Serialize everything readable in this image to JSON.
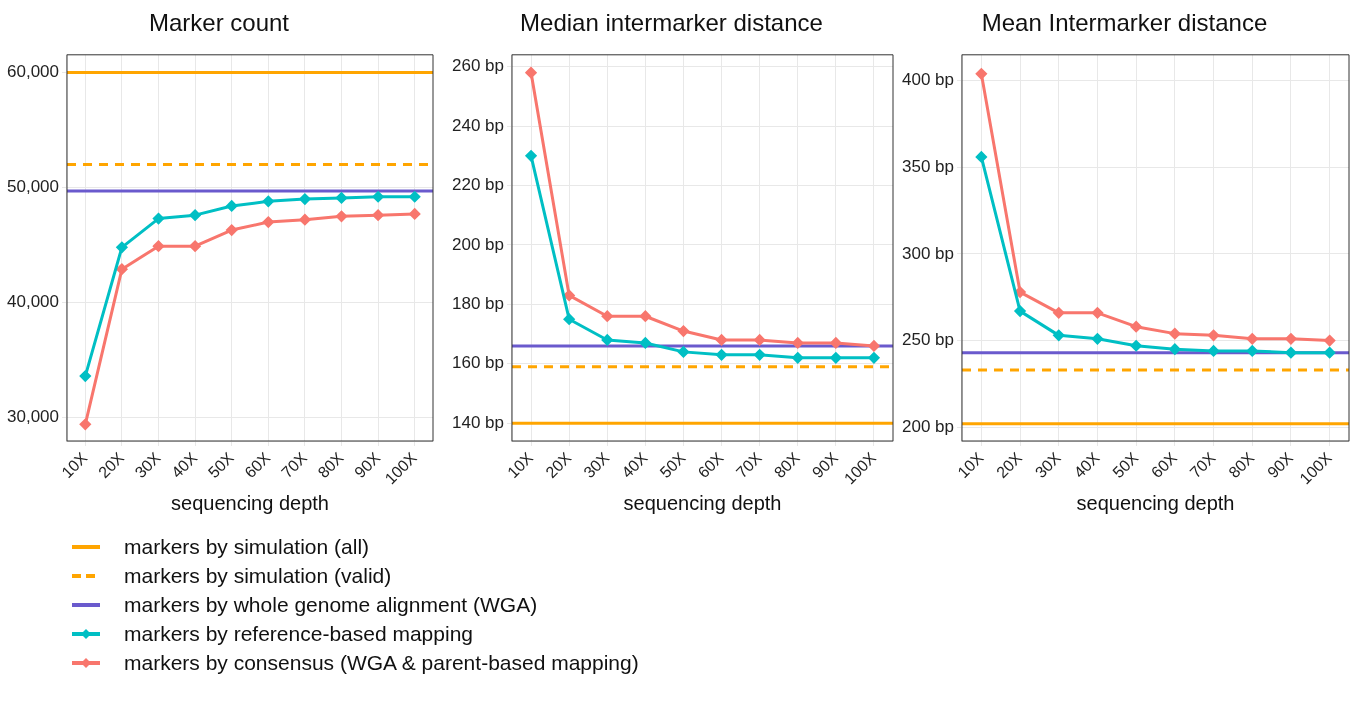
{
  "chart_data": [
    {
      "type": "line",
      "title": "Marker count",
      "xlabel": "sequencing depth",
      "categories": [
        "10X",
        "20X",
        "30X",
        "40X",
        "50X",
        "60X",
        "70X",
        "80X",
        "90X",
        "100X"
      ],
      "series": [
        {
          "name": "markers by reference-based mapping",
          "color": "#00bfc4",
          "values": [
            33600,
            44800,
            47300,
            47600,
            48400,
            48800,
            49000,
            49100,
            49200,
            49200
          ]
        },
        {
          "name": "markers by consensus (WGA & parent-based mapping)",
          "color": "#f8766d",
          "values": [
            29400,
            42900,
            44900,
            44900,
            46300,
            47000,
            47200,
            47500,
            47600,
            47700
          ]
        }
      ],
      "ylim": [
        27950,
        61550
      ],
      "yticks": [
        {
          "value": 30000,
          "label": "30,000"
        },
        {
          "value": 40000,
          "label": "40,000"
        },
        {
          "value": 50000,
          "label": "50,000"
        },
        {
          "value": 60000,
          "label": "60,000"
        }
      ],
      "ref_lines": [
        {
          "axis": "y",
          "value": 60000,
          "label": "markers by simulation (all)",
          "color": "#ffa500",
          "line_style": "solid"
        },
        {
          "axis": "y",
          "value": 52000,
          "label": "markers by simulation (valid)",
          "color": "#ffa500",
          "line_style": "dashed"
        },
        {
          "axis": "y",
          "value": 49700,
          "label": "markers by whole genome alignment (WGA)",
          "color": "#6a5acd",
          "line_style": "solid"
        }
      ],
      "grid": true,
      "marker": "diamond",
      "legend": "bottom"
    },
    {
      "type": "line",
      "title": "Median intermarker distance",
      "xlabel": "sequencing depth",
      "categories": [
        "10X",
        "20X",
        "30X",
        "40X",
        "50X",
        "60X",
        "70X",
        "80X",
        "90X",
        "100X"
      ],
      "series": [
        {
          "color": "#00bfc4",
          "values": [
            230,
            175,
            168,
            167,
            164,
            163,
            163,
            162,
            162,
            162
          ]
        },
        {
          "color": "#f8766d",
          "values": [
            258,
            183,
            176,
            176,
            171,
            168,
            168,
            167,
            167,
            166
          ]
        }
      ],
      "ylim": [
        134,
        264
      ],
      "yticks": [
        {
          "value": 140,
          "label": "140 bp"
        },
        {
          "value": 160,
          "label": "160 bp"
        },
        {
          "value": 180,
          "label": "180 bp"
        },
        {
          "value": 200,
          "label": "200 bp"
        },
        {
          "value": 220,
          "label": "220 bp"
        },
        {
          "value": 240,
          "label": "240 bp"
        },
        {
          "value": 260,
          "label": "260 bp"
        }
      ],
      "ref_lines": [
        {
          "axis": "y",
          "value": 140,
          "color": "#ffa500",
          "line_style": "solid"
        },
        {
          "axis": "y",
          "value": 159,
          "color": "#ffa500",
          "line_style": "dashed"
        },
        {
          "axis": "y",
          "value": 166,
          "color": "#6a5acd",
          "line_style": "solid"
        }
      ],
      "grid": true,
      "marker": "diamond"
    },
    {
      "type": "line",
      "title": "Mean Intermarker distance",
      "xlabel": "sequencing depth",
      "categories": [
        "10X",
        "20X",
        "30X",
        "40X",
        "50X",
        "60X",
        "70X",
        "80X",
        "90X",
        "100X"
      ],
      "series": [
        {
          "color": "#00bfc4",
          "values": [
            356,
            267,
            253,
            251,
            247,
            245,
            244,
            244,
            243,
            243
          ]
        },
        {
          "color": "#f8766d",
          "values": [
            404,
            278,
            266,
            266,
            258,
            254,
            253,
            251,
            251,
            250
          ]
        }
      ],
      "ylim": [
        192,
        415
      ],
      "yticks": [
        {
          "value": 200,
          "label": "200 bp"
        },
        {
          "value": 250,
          "label": "250 bp"
        },
        {
          "value": 300,
          "label": "300 bp"
        },
        {
          "value": 350,
          "label": "350 bp"
        },
        {
          "value": 400,
          "label": "400 bp"
        }
      ],
      "ref_lines": [
        {
          "axis": "y",
          "value": 202,
          "color": "#ffa500",
          "line_style": "solid"
        },
        {
          "axis": "y",
          "value": 233,
          "color": "#ffa500",
          "line_style": "dashed"
        },
        {
          "axis": "y",
          "value": 243,
          "color": "#6a5acd",
          "line_style": "solid"
        }
      ],
      "grid": true,
      "marker": "diamond"
    }
  ]
}
